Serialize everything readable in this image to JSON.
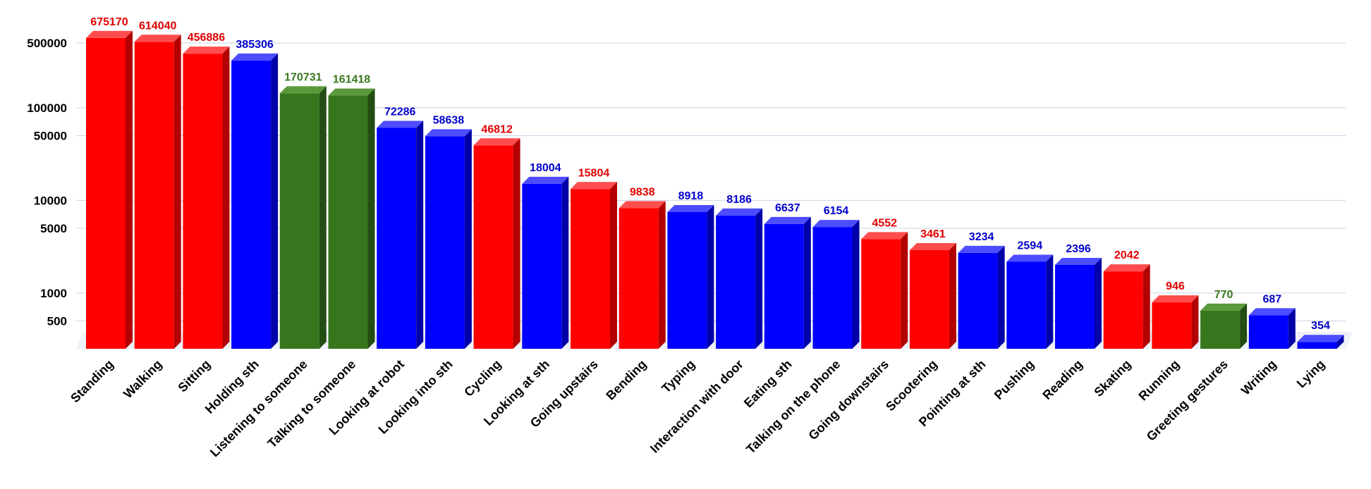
{
  "chart_data": {
    "type": "bar",
    "style": "3d-column",
    "yscale": "log",
    "grid": true,
    "legend": "none",
    "title": "",
    "xlabel": "",
    "ylabel": "",
    "ylim": [
      250,
      1000000
    ],
    "yticks": [
      500,
      1000,
      5000,
      10000,
      50000,
      100000,
      500000
    ],
    "ytick_labels": [
      "500",
      "1000",
      "5000",
      "10000",
      "50000",
      "100000",
      "500000"
    ],
    "categories": [
      "Standing",
      "Walking",
      "Sitting",
      "Holding sth",
      "Listening to someone",
      "Talking to someone",
      "Looking at robot",
      "Looking into sth",
      "Cycling",
      "Looking at sth",
      "Going upstairs",
      "Bending",
      "Typing",
      "Interaction with door",
      "Eating sth",
      "Talking on the phone",
      "Going downstairs",
      "Scootering",
      "Pointing at sth",
      "Pushing",
      "Reading",
      "Skating",
      "Running",
      "Greeting gestures",
      "Writing",
      "Lying"
    ],
    "values": [
      675170,
      614040,
      456886,
      385306,
      170731,
      161418,
      72286,
      58638,
      46812,
      18004,
      15804,
      9838,
      8918,
      8186,
      6637,
      6154,
      4552,
      3461,
      3234,
      2594,
      2396,
      2042,
      946,
      770,
      687,
      354
    ],
    "data_labels": [
      "675170",
      "614040",
      "456886",
      "385306",
      "170731",
      "161418",
      "72286",
      "58638",
      "46812",
      "18004",
      "15804",
      "9838",
      "8918",
      "8186",
      "6637",
      "6154",
      "4552",
      "3461",
      "3234",
      "2594",
      "2396",
      "2042",
      "946",
      "770",
      "687",
      "354"
    ],
    "groups": [
      "red",
      "red",
      "red",
      "blue",
      "green",
      "green",
      "blue",
      "blue",
      "red",
      "blue",
      "red",
      "red",
      "blue",
      "blue",
      "blue",
      "blue",
      "red",
      "red",
      "blue",
      "blue",
      "blue",
      "red",
      "red",
      "green",
      "blue",
      "blue"
    ]
  },
  "colors": {
    "red": {
      "front": "#ff0000",
      "top": "#ff4d4d",
      "side": "#b30000",
      "label": "#e00000"
    },
    "blue": {
      "front": "#0000ff",
      "top": "#4d4dff",
      "side": "#0000a8",
      "label": "#0000cc"
    },
    "green": {
      "front": "#38761d",
      "top": "#5a9a3c",
      "side": "#234d12",
      "label": "#38761d"
    }
  }
}
